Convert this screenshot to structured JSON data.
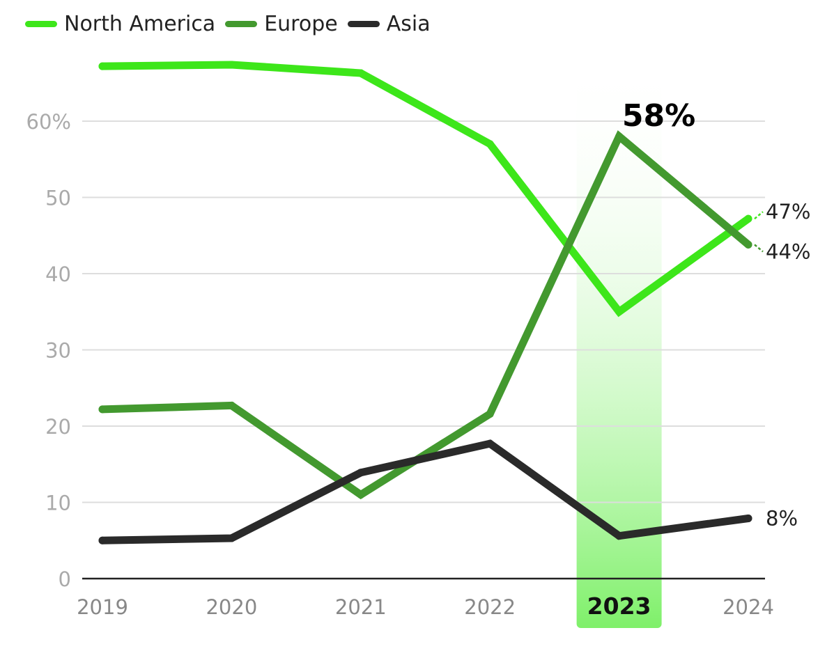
{
  "chart_data": {
    "type": "line",
    "title": "",
    "xlabel": "",
    "ylabel": "",
    "categories": [
      "2019",
      "2020",
      "2021",
      "2022",
      "2023",
      "2024"
    ],
    "y_ticks": [
      "0",
      "10",
      "20",
      "30",
      "40",
      "50",
      "60%"
    ],
    "ylim": [
      0,
      70
    ],
    "grid": true,
    "legend_position": "top-left",
    "highlight": {
      "category": "2023",
      "color": "#7ff06a"
    },
    "series": [
      {
        "name": "North America",
        "color": "#3de61a",
        "values": [
          67.2,
          67.4,
          66.3,
          57,
          35,
          47.2
        ]
      },
      {
        "name": "Europe",
        "color": "#43992f",
        "values": [
          22.2,
          22.7,
          11,
          21.6,
          58,
          43.8
        ]
      },
      {
        "name": "Asia",
        "color": "#2a2a2a",
        "values": [
          5,
          5.3,
          13.9,
          17.7,
          5.6,
          7.9
        ]
      }
    ],
    "annotations": [
      {
        "series": "Europe",
        "category": "2023",
        "text": "58%"
      },
      {
        "series": "North America",
        "category": "2024",
        "text": "47%"
      },
      {
        "series": "Europe",
        "category": "2024",
        "text": "44%"
      },
      {
        "series": "Asia",
        "category": "2024",
        "text": "8%"
      }
    ]
  }
}
